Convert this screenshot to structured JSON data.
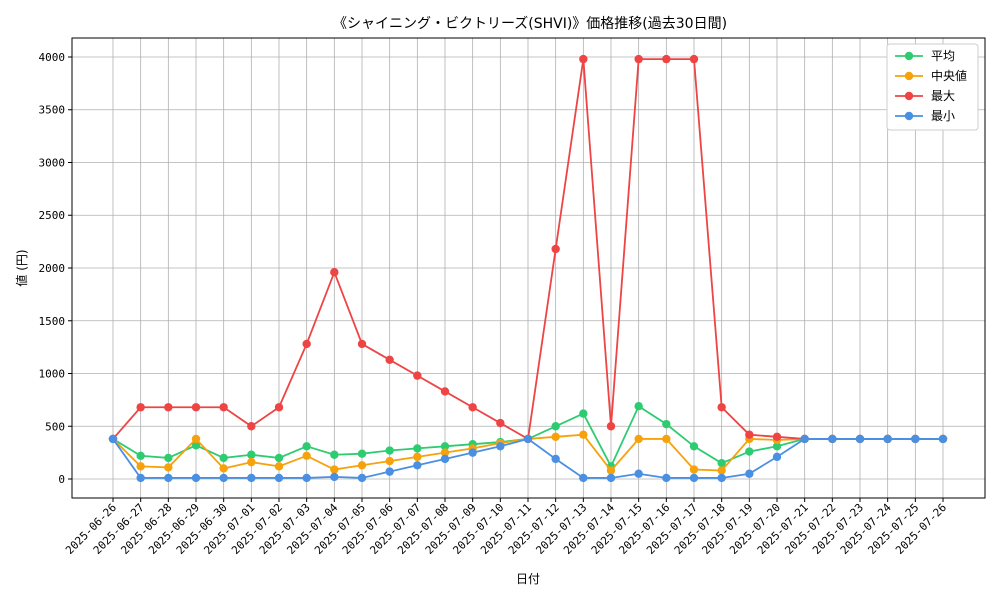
{
  "chart_data": {
    "type": "line",
    "title": "《シャイニング・ビクトリーズ(SHVI)》価格推移(過去30日間)",
    "xlabel": "日付",
    "ylabel": "値 (円)",
    "ylim": [
      -180,
      4180
    ],
    "yticks": [
      0,
      500,
      1000,
      1500,
      2000,
      2500,
      3000,
      3500,
      4000
    ],
    "grid": true,
    "legend_position": "top-right",
    "categories": [
      "2025-06-26",
      "2025-06-27",
      "2025-06-28",
      "2025-06-29",
      "2025-06-30",
      "2025-07-01",
      "2025-07-02",
      "2025-07-03",
      "2025-07-04",
      "2025-07-05",
      "2025-07-06",
      "2025-07-07",
      "2025-07-08",
      "2025-07-09",
      "2025-07-10",
      "2025-07-11",
      "2025-07-12",
      "2025-07-13",
      "2025-07-14",
      "2025-07-15",
      "2025-07-16",
      "2025-07-17",
      "2025-07-18",
      "2025-07-19",
      "2025-07-20",
      "2025-07-21",
      "2025-07-22",
      "2025-07-23",
      "2025-07-24",
      "2025-07-25",
      "2025-07-26"
    ],
    "series": [
      {
        "name": "平均",
        "color": "#2ecc71",
        "values": [
          380,
          220,
          200,
          320,
          200,
          230,
          200,
          310,
          230,
          240,
          270,
          290,
          310,
          330,
          350,
          380,
          500,
          620,
          120,
          690,
          520,
          310,
          150,
          260,
          310,
          380,
          380,
          380,
          380,
          380,
          380
        ]
      },
      {
        "name": "中央値",
        "color": "#f5a20c",
        "values": [
          380,
          120,
          110,
          380,
          100,
          160,
          120,
          220,
          90,
          130,
          170,
          210,
          250,
          290,
          340,
          380,
          400,
          420,
          80,
          380,
          380,
          90,
          80,
          380,
          370,
          380,
          380,
          380,
          380,
          380,
          380
        ]
      },
      {
        "name": "最大",
        "color": "#ee4444",
        "values": [
          380,
          680,
          680,
          680,
          680,
          500,
          680,
          1280,
          1960,
          1280,
          1130,
          980,
          830,
          680,
          530,
          380,
          2180,
          3980,
          500,
          3980,
          3980,
          3980,
          680,
          420,
          400,
          380,
          380,
          380,
          380,
          380,
          380
        ]
      },
      {
        "name": "最小",
        "color": "#4a90e2",
        "values": [
          380,
          10,
          10,
          10,
          10,
          10,
          10,
          10,
          20,
          10,
          70,
          130,
          190,
          250,
          310,
          380,
          190,
          10,
          10,
          50,
          10,
          10,
          10,
          50,
          210,
          380,
          380,
          380,
          380,
          380,
          380
        ]
      }
    ]
  }
}
